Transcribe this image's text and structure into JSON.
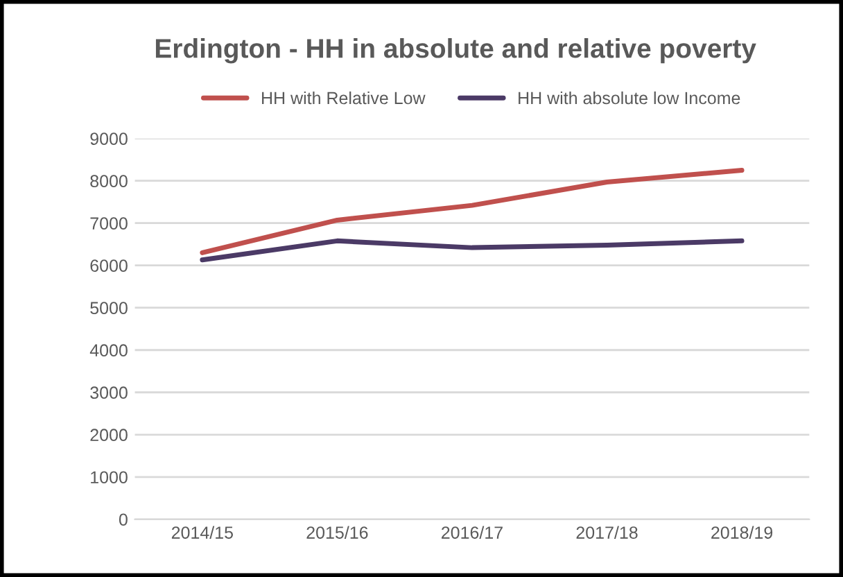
{
  "chart_data": {
    "type": "line",
    "title": "Erdington - HH in absolute and relative poverty",
    "categories": [
      "2014/15",
      "2015/16",
      "2016/17",
      "2017/18",
      "2018/19"
    ],
    "series": [
      {
        "name": "HH with Relative Low",
        "color": "#c0504d",
        "values": [
          6300,
          7070,
          7420,
          7970,
          8250
        ]
      },
      {
        "name": "HH with absolute low Income",
        "color": "#4b3a66",
        "values": [
          6130,
          6580,
          6420,
          6480,
          6580
        ]
      }
    ],
    "ylim": [
      0,
      9000
    ],
    "yticks": [
      0,
      1000,
      2000,
      3000,
      4000,
      5000,
      6000,
      7000,
      8000,
      9000
    ],
    "grid": "y",
    "legend": "top",
    "marker": "none",
    "line_style": "solid"
  }
}
